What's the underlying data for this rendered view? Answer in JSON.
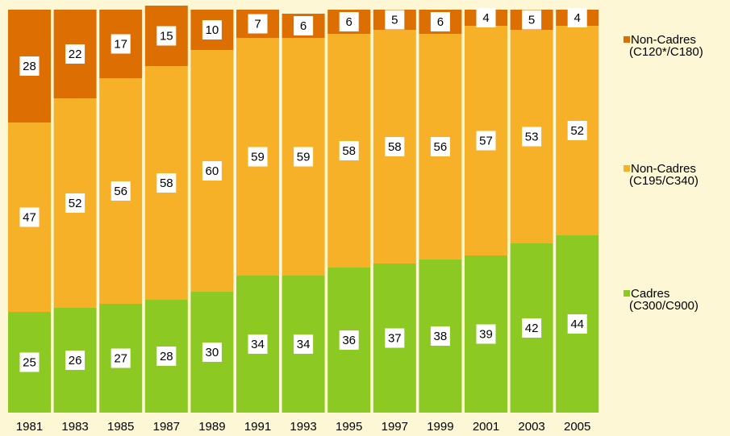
{
  "chart_data": {
    "type": "stacked_bar",
    "categories": [
      "1981",
      "1983",
      "1985",
      "1987",
      "1989",
      "1991",
      "1993",
      "1995",
      "1997",
      "1999",
      "2001",
      "2003",
      "2005"
    ],
    "series": [
      {
        "name": "Cadres\n(C300/C900)",
        "color": "#8dc923",
        "values": [
          25,
          26,
          27,
          28,
          30,
          34,
          34,
          36,
          37,
          38,
          39,
          42,
          44
        ]
      },
      {
        "name": "Non-Cadres\n(C195/C340)",
        "color": "#f7b129",
        "values": [
          47,
          52,
          56,
          58,
          60,
          59,
          59,
          58,
          58,
          56,
          57,
          53,
          52
        ]
      },
      {
        "name": "Non-Cadres\n(C120*/C180)",
        "color": "#dd6f02",
        "values": [
          28,
          22,
          17,
          15,
          10,
          7,
          6,
          6,
          5,
          6,
          4,
          5,
          4
        ]
      }
    ],
    "ylim": [
      0,
      100
    ]
  }
}
